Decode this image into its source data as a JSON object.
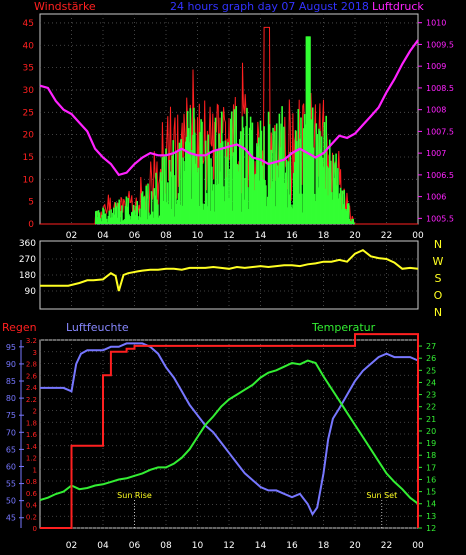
{
  "chart_data": [
    {
      "type": "line",
      "title": "24 hours graph day  07 August 2018",
      "left_label": "Windstärke",
      "right_label": "Luftdruck",
      "x_ticks": [
        "02",
        "04",
        "06",
        "08",
        "10",
        "12",
        "14",
        "16",
        "18",
        "20",
        "22",
        "00"
      ],
      "y_left_ticks": [
        "0",
        "5",
        "10",
        "15",
        "20",
        "25",
        "30",
        "35",
        "40",
        "45"
      ],
      "y_left_range": [
        0,
        47
      ],
      "y_right_ticks": [
        "1005.5",
        "1006",
        "1006.5",
        "1007",
        "1007.5",
        "1008",
        "1008.5",
        "1009",
        "1009.5",
        "1010"
      ],
      "y_right_range": [
        1005.37,
        1010.2
      ],
      "series": [
        {
          "name": "Windstärke",
          "axis": "left",
          "color": "#ff2020",
          "kind": "gust"
        },
        {
          "name": "",
          "axis": "left",
          "color": "#33ff33",
          "kind": "wind-avg"
        },
        {
          "name": "Luftdruck",
          "axis": "right",
          "color": "#ff22ff",
          "x": [
            0,
            0.5,
            1,
            1.5,
            2,
            2.5,
            3,
            3.5,
            4,
            4.5,
            5,
            5.5,
            6,
            6.5,
            7,
            7.5,
            8,
            8.5,
            9,
            9.5,
            10,
            10.5,
            11,
            11.5,
            12,
            12.5,
            13,
            13.5,
            14,
            14.5,
            15,
            15.5,
            16,
            16.5,
            17,
            17.5,
            18,
            18.5,
            19,
            19.5,
            20,
            20.5,
            21,
            21.5,
            22,
            22.5,
            23,
            23.5,
            24
          ],
          "y": [
            1008.55,
            1008.5,
            1008.2,
            1008.0,
            1007.9,
            1007.7,
            1007.5,
            1007.1,
            1006.9,
            1006.75,
            1006.5,
            1006.55,
            1006.75,
            1006.9,
            1007.0,
            1006.95,
            1006.95,
            1007.0,
            1007.1,
            1007.0,
            1006.95,
            1006.95,
            1007.05,
            1007.1,
            1007.15,
            1007.2,
            1007.1,
            1006.9,
            1006.85,
            1006.75,
            1006.8,
            1006.85,
            1007.0,
            1007.1,
            1007.0,
            1006.9,
            1007.0,
            1007.2,
            1007.4,
            1007.35,
            1007.45,
            1007.65,
            1007.85,
            1008.05,
            1008.4,
            1008.7,
            1009.05,
            1009.35,
            1009.6
          ]
        }
      ]
    },
    {
      "type": "line",
      "direction_labels": [
        "N",
        "W",
        "S",
        "O",
        "N"
      ],
      "x_ticks": [
        "02",
        "04",
        "06",
        "08",
        "10",
        "12",
        "14",
        "16",
        "18",
        "20",
        "22",
        "00"
      ],
      "y_ticks": [
        "0",
        "90",
        "180",
        "270",
        "360"
      ],
      "y_range": [
        0,
        360
      ],
      "series": [
        {
          "name": "",
          "color": "#ffff22",
          "x": [
            0,
            1,
            1.8,
            2.5,
            3,
            3.4,
            4,
            4.2,
            4.5,
            4.8,
            5,
            5.3,
            5.6,
            5.9,
            6.2,
            6.5,
            7,
            7.5,
            8,
            8.5,
            9,
            9.5,
            10,
            10.5,
            11,
            11.5,
            12,
            12.5,
            13,
            13.5,
            14,
            14.5,
            15,
            15.5,
            16,
            16.5,
            17,
            17.5,
            18,
            18.5,
            19,
            19.5,
            20,
            20.5,
            21,
            21.5,
            22,
            22.5,
            23,
            23.5,
            24
          ],
          "y": [
            120,
            120,
            120,
            135,
            150,
            150,
            155,
            170,
            190,
            175,
            90,
            180,
            190,
            195,
            200,
            205,
            210,
            210,
            215,
            215,
            210,
            220,
            220,
            220,
            225,
            220,
            215,
            225,
            220,
            225,
            230,
            225,
            230,
            235,
            235,
            230,
            240,
            245,
            255,
            255,
            265,
            255,
            300,
            320,
            285,
            275,
            270,
            250,
            215,
            220,
            215
          ]
        }
      ]
    },
    {
      "type": "line",
      "left_label": "Regen",
      "middle_label": "Luftfeuchte",
      "right_label": "Temperatur",
      "annotations": [
        "Sun Rise",
        "Sun Set"
      ],
      "x_ticks": [
        "02",
        "04",
        "06",
        "08",
        "10",
        "12",
        "14",
        "16",
        "18",
        "20",
        "22",
        "00"
      ],
      "y_rain_ticks": [
        "0",
        "0.2",
        "0.4",
        "0.6",
        "0.8",
        "1",
        "1.2",
        "1.4",
        "1.6",
        "1.8",
        "2",
        "2.2",
        "2.4",
        "2.6",
        "2.8",
        "3",
        "3.2"
      ],
      "y_rain_range": [
        0,
        3.2
      ],
      "y_humidity_ticks": [
        "45",
        "50",
        "55",
        "60",
        "65",
        "70",
        "75",
        "80",
        "85",
        "90",
        "95"
      ],
      "y_humidity_range": [
        42,
        97
      ],
      "y_temp_ticks": [
        "12",
        "13",
        "14",
        "15",
        "16",
        "17",
        "18",
        "19",
        "20",
        "21",
        "22",
        "23",
        "24",
        "25",
        "26",
        "27"
      ],
      "y_temp_range": [
        12,
        27.5
      ],
      "series": [
        {
          "name": "Regen",
          "axis": "rain",
          "color": "#ff2020",
          "step": true,
          "x": [
            0,
            1.95,
            2,
            2.5,
            3,
            3.5,
            4,
            4.5,
            5,
            5.5,
            6,
            7,
            8,
            10,
            14,
            18,
            19.5,
            20,
            24
          ],
          "y": [
            0,
            0,
            1.4,
            1.4,
            1.4,
            1.4,
            2.6,
            3.0,
            3.0,
            3.05,
            3.1,
            3.1,
            3.1,
            3.1,
            3.1,
            3.1,
            3.1,
            3.3,
            3.3
          ]
        },
        {
          "name": "Luftfeuchte",
          "axis": "humidity",
          "color": "#7777ff",
          "x": [
            0,
            1,
            1.5,
            2,
            2.3,
            2.6,
            3,
            3.5,
            4,
            4.5,
            5,
            5.5,
            6,
            6.5,
            7,
            7.5,
            8,
            8.5,
            9,
            9.5,
            10,
            10.5,
            11,
            11.5,
            12,
            12.5,
            13,
            13.5,
            14,
            14.5,
            15,
            15.5,
            16,
            16.5,
            17,
            17.3,
            17.6,
            18,
            18.3,
            18.6,
            19,
            19.5,
            20,
            20.5,
            21,
            21.5,
            22,
            22.5,
            23,
            23.5,
            24
          ],
          "y": [
            83,
            83,
            83,
            82,
            90,
            93,
            94,
            94,
            94,
            95,
            95,
            96,
            96,
            96,
            95,
            93,
            89,
            86,
            82,
            78,
            75,
            72,
            70,
            67,
            64,
            61,
            58,
            56,
            54,
            53,
            53,
            52,
            51,
            52,
            49,
            46,
            48,
            58,
            68,
            74,
            77,
            81,
            85,
            88,
            90,
            92,
            93,
            92,
            92,
            92,
            91
          ]
        },
        {
          "name": "Temperatur",
          "axis": "temp",
          "color": "#33ee33",
          "x": [
            0,
            0.5,
            1,
            1.5,
            2,
            2.5,
            3,
            3.5,
            4,
            4.5,
            5,
            5.5,
            6,
            6.5,
            7,
            7.5,
            8,
            8.5,
            9,
            9.5,
            10,
            10.5,
            11,
            11.5,
            12,
            12.5,
            13,
            13.5,
            14,
            14.5,
            15,
            15.5,
            16,
            16.5,
            17,
            17.5,
            18,
            18.5,
            19,
            19.5,
            20,
            20.5,
            21,
            21.5,
            22,
            22.5,
            23,
            23.5,
            24
          ],
          "y": [
            14.3,
            14.5,
            14.8,
            15.0,
            15.5,
            15.2,
            15.3,
            15.5,
            15.6,
            15.8,
            16.0,
            16.1,
            16.3,
            16.5,
            16.8,
            17.0,
            17.0,
            17.3,
            17.8,
            18.5,
            19.5,
            20.5,
            21.2,
            22.0,
            22.6,
            23.0,
            23.4,
            23.8,
            24.4,
            24.8,
            25.0,
            25.3,
            25.6,
            25.5,
            25.8,
            25.6,
            24.5,
            23.5,
            22.5,
            21.5,
            20.5,
            19.5,
            18.5,
            17.5,
            16.5,
            15.8,
            15.2,
            14.5,
            14.0
          ]
        }
      ]
    }
  ]
}
